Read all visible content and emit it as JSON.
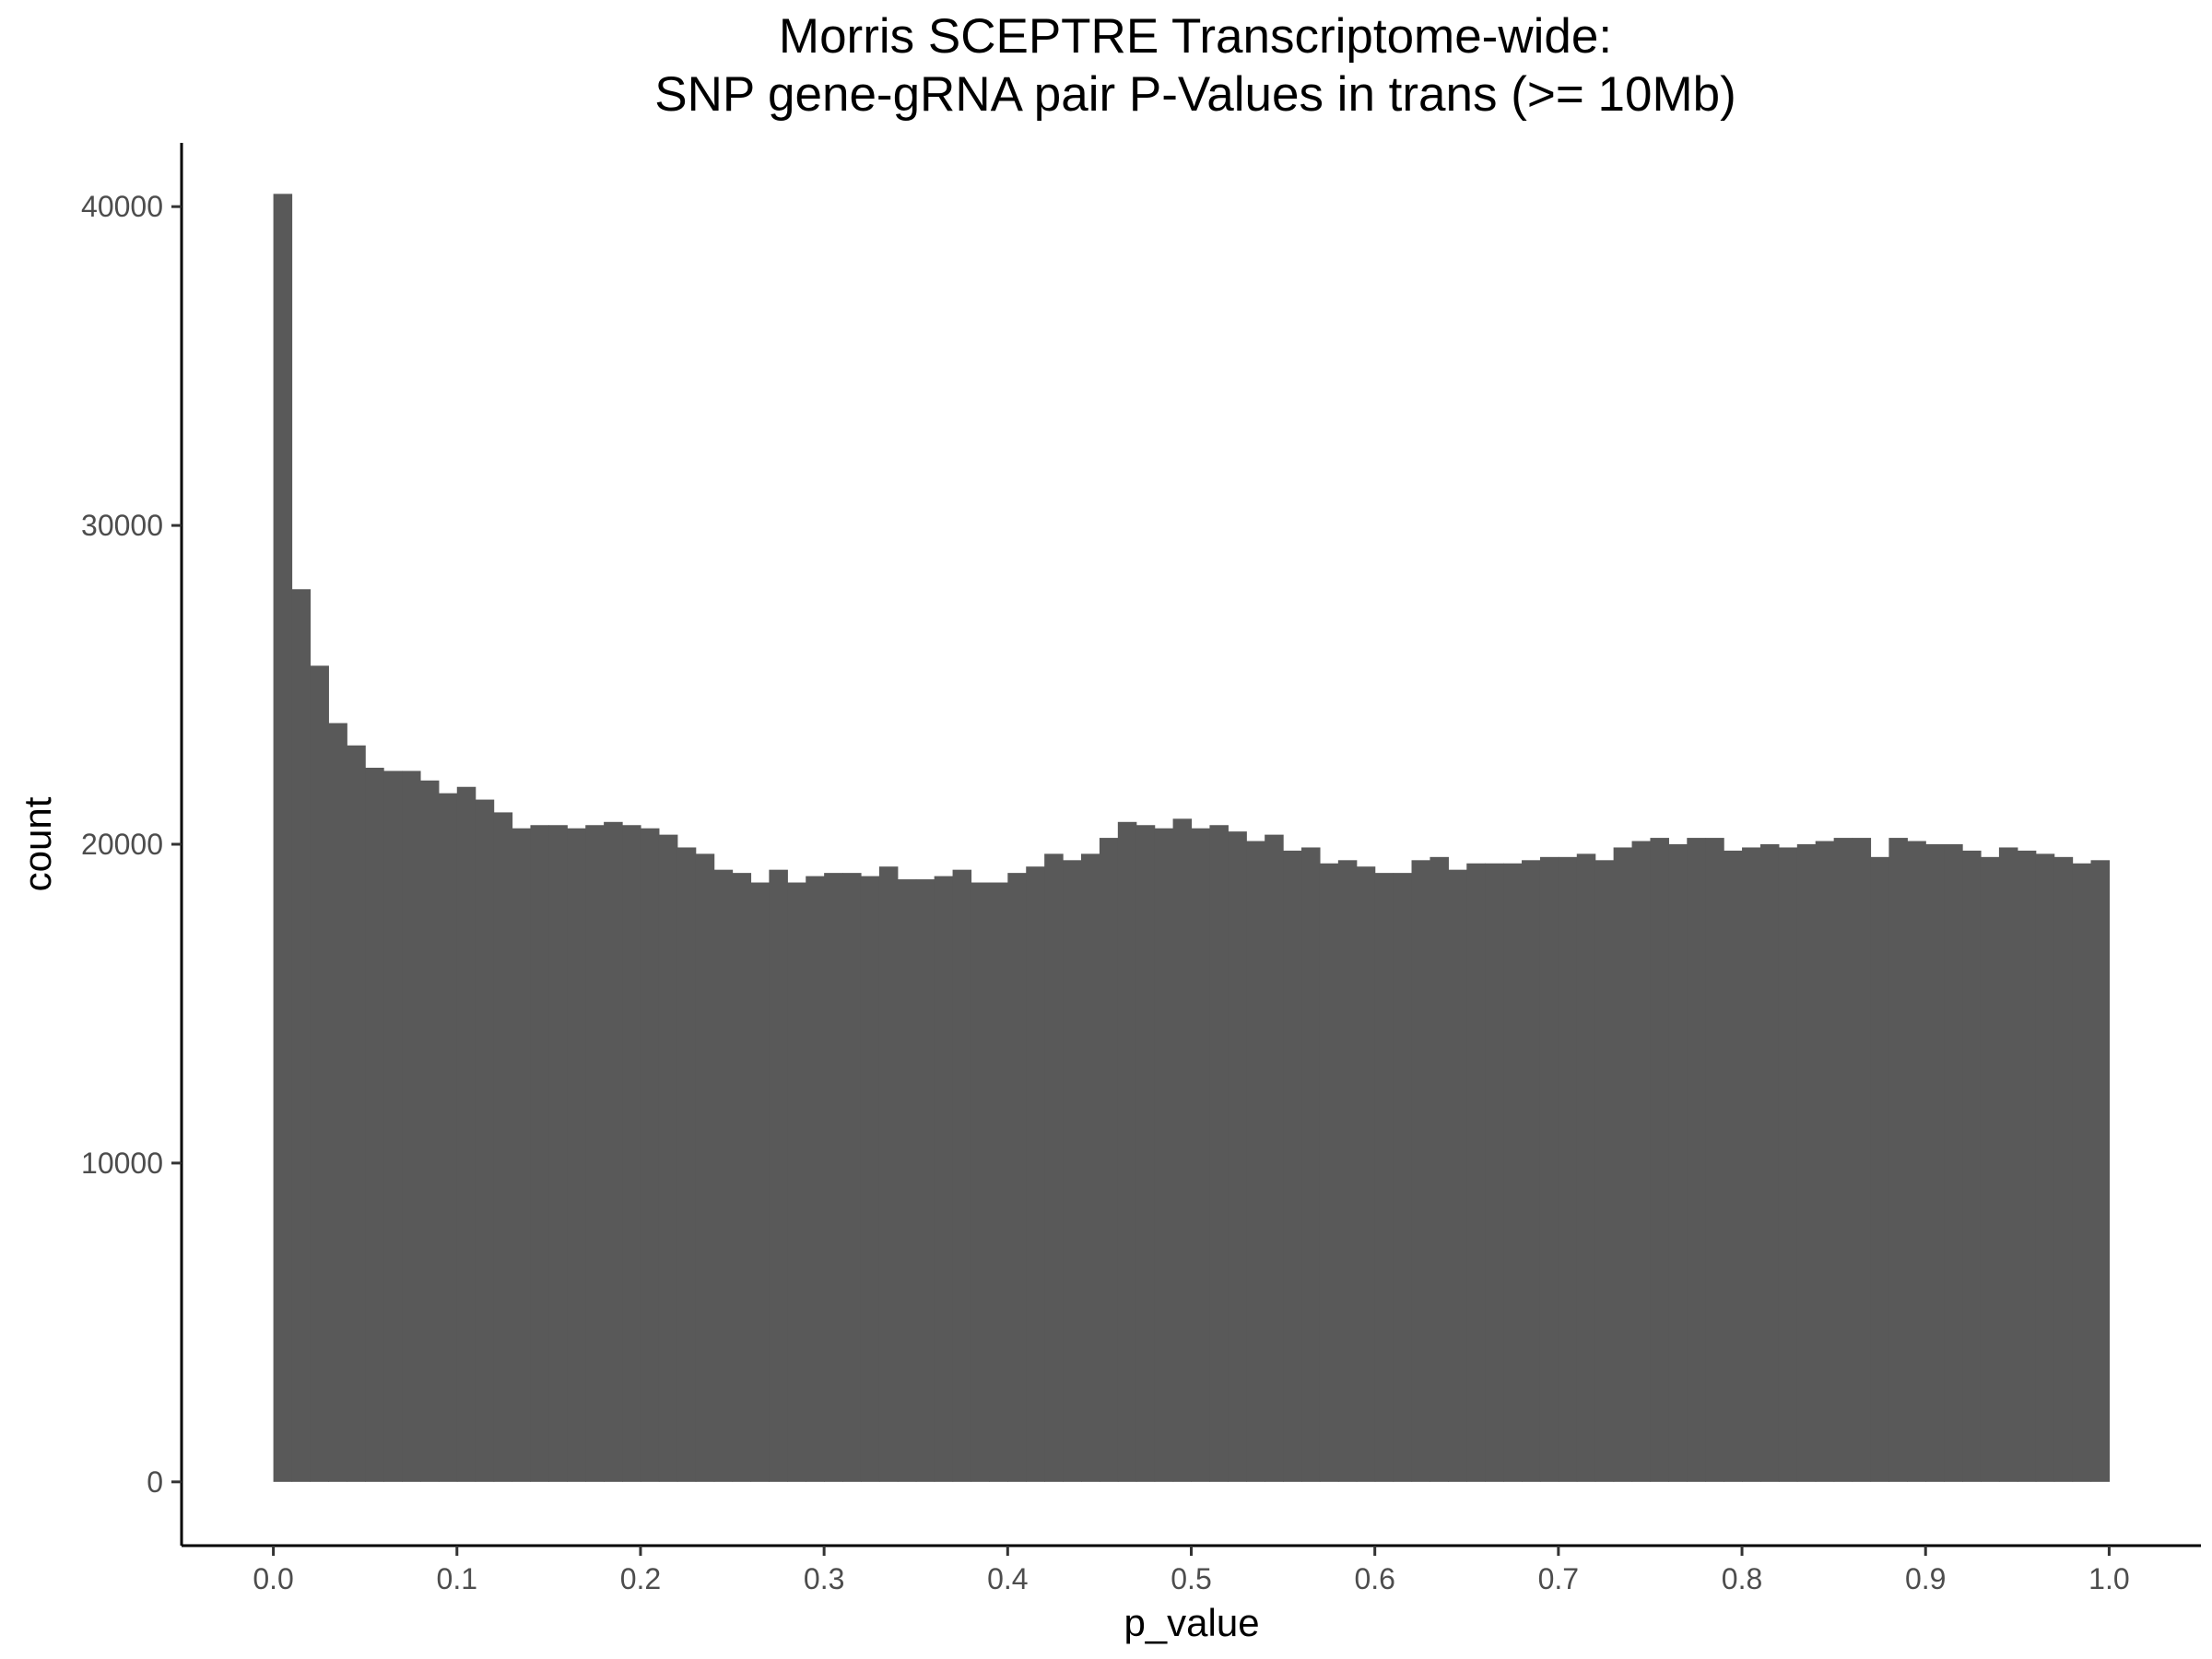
{
  "chart_data": {
    "type": "bar",
    "title": [
      "Morris SCEPTRE Transcriptome-wide:",
      "SNP gene-gRNA pair P-Values in trans (>= 10Mb)"
    ],
    "xlabel": "p_value",
    "ylabel": "count",
    "xlim": [
      -0.05,
      1.05
    ],
    "ylim": [
      -2000,
      42000
    ],
    "x_ticks": [
      0.0,
      0.1,
      0.2,
      0.3,
      0.4,
      0.5,
      0.6,
      0.7,
      0.8,
      0.9,
      1.0
    ],
    "x_tick_labels": [
      "0.0",
      "0.1",
      "0.2",
      "0.3",
      "0.4",
      "0.5",
      "0.6",
      "0.7",
      "0.8",
      "0.9",
      "1.0"
    ],
    "y_ticks": [
      0,
      10000,
      20000,
      30000,
      40000
    ],
    "y_tick_labels": [
      "0",
      "10000",
      "20000",
      "30000",
      "40000"
    ],
    "grid": false,
    "bar_color": "#595959",
    "bin_start": 0.0,
    "bin_width": 0.01,
    "values": [
      40400,
      28000,
      25600,
      23800,
      23100,
      22400,
      22300,
      22300,
      22000,
      21600,
      21800,
      21400,
      21000,
      20500,
      20600,
      20600,
      20500,
      20600,
      20700,
      20600,
      20500,
      20300,
      19900,
      19700,
      19200,
      19100,
      18800,
      19200,
      18800,
      19000,
      19100,
      19100,
      19000,
      19300,
      18900,
      18900,
      19000,
      19200,
      18800,
      18800,
      19100,
      19300,
      19700,
      19500,
      19700,
      20200,
      20700,
      20600,
      20500,
      20800,
      20500,
      20600,
      20400,
      20100,
      20300,
      19800,
      19900,
      19400,
      19500,
      19300,
      19100,
      19100,
      19500,
      19600,
      19200,
      19400,
      19400,
      19400,
      19500,
      19600,
      19600,
      19700,
      19500,
      19900,
      20100,
      20200,
      20000,
      20200,
      20200,
      19800,
      19900,
      20000,
      19900,
      20000,
      20100,
      20200,
      20200,
      19600,
      20200,
      20100,
      20000,
      20000,
      19800,
      19600,
      19900,
      19800,
      19700,
      19600,
      19400,
      19500
    ]
  }
}
